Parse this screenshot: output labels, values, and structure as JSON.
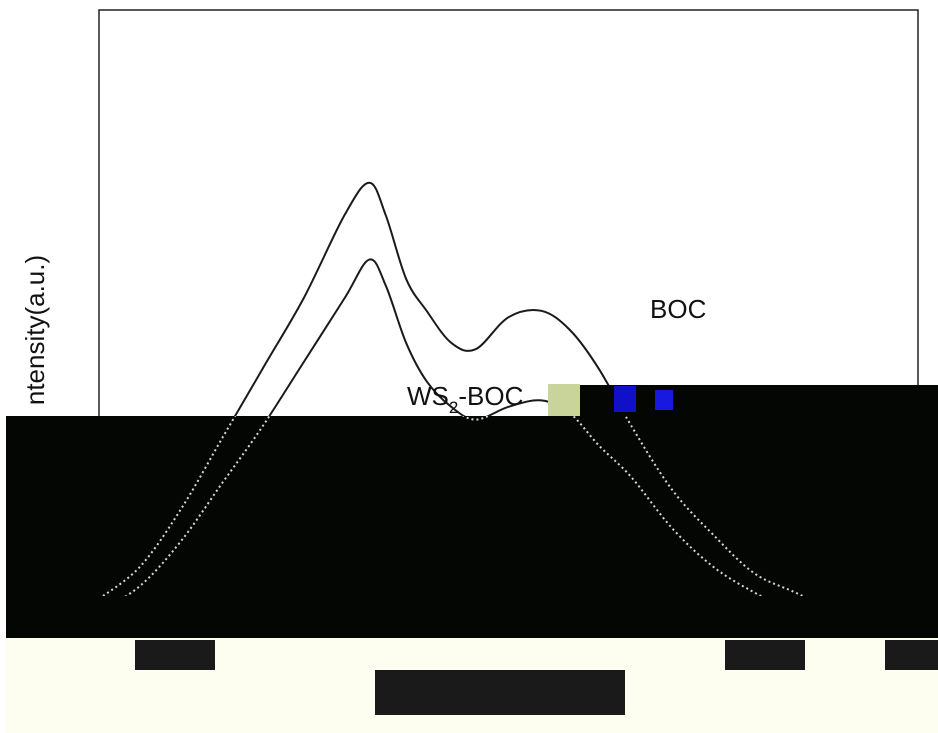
{
  "chart_data": {
    "type": "line",
    "title": "",
    "xlabel": "",
    "ylabel": "ntensity(a.u.)",
    "grid": false,
    "legend": "none",
    "series": [
      {
        "name": "BOC",
        "color": "#1a1a1a",
        "x": [
          0,
          10,
          20,
          30,
          40,
          50,
          60,
          66,
          70,
          75,
          80,
          86,
          92,
          100,
          108,
          115,
          122,
          130,
          140,
          150,
          160,
          170,
          180,
          190,
          200
        ],
        "y": [
          0.08,
          0.13,
          0.22,
          0.33,
          0.44,
          0.55,
          0.68,
          0.73,
          0.68,
          0.58,
          0.53,
          0.48,
          0.47,
          0.52,
          0.53,
          0.5,
          0.44,
          0.35,
          0.25,
          0.18,
          0.12,
          0.09,
          0.06,
          0.045,
          0.035
        ]
      },
      {
        "name": "WS₂-BOC",
        "color": "#1a1a1a",
        "x": [
          0,
          10,
          20,
          30,
          40,
          50,
          60,
          66,
          70,
          75,
          80,
          86,
          92,
          100,
          108,
          115,
          122,
          130,
          140,
          150,
          160,
          170,
          180,
          190,
          200
        ],
        "y": [
          0.06,
          0.1,
          0.17,
          0.26,
          0.35,
          0.45,
          0.55,
          0.61,
          0.57,
          0.48,
          0.42,
          0.38,
          0.36,
          0.38,
          0.39,
          0.37,
          0.32,
          0.27,
          0.19,
          0.13,
          0.09,
          0.06,
          0.04,
          0.03,
          0.025
        ]
      }
    ],
    "xlim": [
      0,
      200
    ],
    "ylim": [
      0,
      1
    ]
  },
  "labels": {
    "boc": "BOC",
    "ws2_boc_prefix": "WS",
    "ws2_boc_sub": "2",
    "ws2_boc_suffix": "-BOC"
  }
}
